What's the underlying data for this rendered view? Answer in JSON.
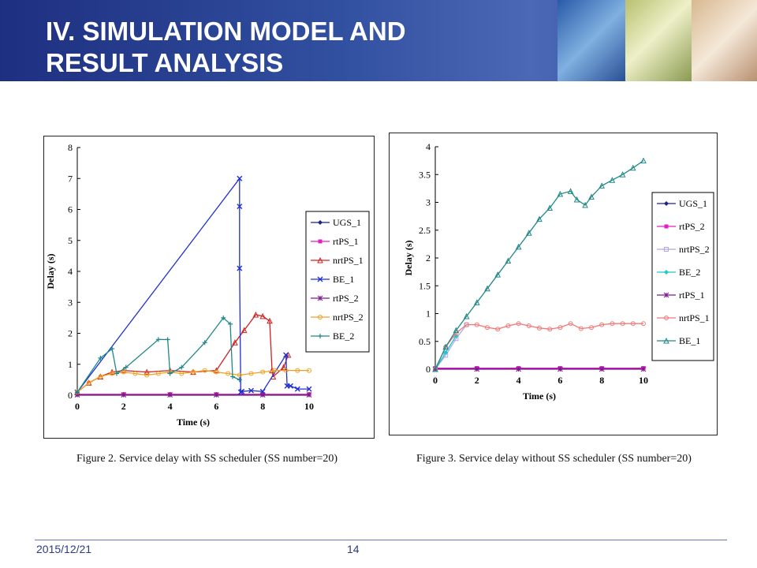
{
  "slide": {
    "title_line1": "IV. SIMULATION MODEL AND",
    "title_line2": "RESULT ANALYSIS",
    "date": "2015/12/21",
    "page_number": "14"
  },
  "chart_data": [
    {
      "type": "line",
      "caption": "Figure 2.    Service delay with SS scheduler (SS number=20)",
      "xlabel": "Time (s)",
      "ylabel": "Delay (s)",
      "xlim": [
        0,
        10
      ],
      "ylim": [
        0,
        8
      ],
      "xticks": [
        0,
        2,
        4,
        6,
        8,
        10
      ],
      "yticks": [
        0,
        1,
        2,
        3,
        4,
        5,
        6,
        7,
        8
      ],
      "legend_position": "right",
      "series": [
        {
          "name": "UGS_1",
          "color": "#1f1f8f",
          "marker": "diamond",
          "x": [
            0,
            2,
            4,
            6,
            8,
            10
          ],
          "y": [
            0.02,
            0.02,
            0.02,
            0.02,
            0.02,
            0.02
          ]
        },
        {
          "name": "rtPS_1",
          "color": "#e020c0",
          "marker": "square",
          "x": [
            0,
            2,
            4,
            6,
            8,
            10
          ],
          "y": [
            0.03,
            0.03,
            0.03,
            0.03,
            0.03,
            0.03
          ]
        },
        {
          "name": "nrtPS_1",
          "color": "#d02020",
          "marker": "triangle",
          "x": [
            0,
            0.5,
            1.0,
            1.5,
            2,
            3,
            4,
            5,
            6,
            6.8,
            7.2,
            7.7,
            8.0,
            8.3,
            8.4,
            8.45,
            8.9,
            9.1
          ],
          "y": [
            0.1,
            0.4,
            0.6,
            0.75,
            0.8,
            0.75,
            0.8,
            0.75,
            0.8,
            1.7,
            2.1,
            2.6,
            2.55,
            2.4,
            0.8,
            0.6,
            0.9,
            1.3
          ]
        },
        {
          "name": "BE_1",
          "color": "#2030d0",
          "marker": "x",
          "x": [
            0,
            7.0,
            7.0,
            7.0,
            7.05,
            7.1,
            7.5,
            8.0,
            9.0,
            9.05,
            9.2,
            9.5,
            10
          ],
          "y": [
            0.1,
            7.0,
            6.1,
            4.1,
            0.1,
            0.12,
            0.15,
            0.12,
            1.3,
            0.3,
            0.3,
            0.2,
            0.2
          ]
        },
        {
          "name": "rtPS_2",
          "color": "#7a1a8a",
          "marker": "asterisk",
          "x": [
            0,
            2,
            4,
            6,
            8,
            10
          ],
          "y": [
            0.01,
            0.01,
            0.01,
            0.01,
            0.01,
            0.01
          ]
        },
        {
          "name": "nrtPS_2",
          "color": "#f0a020",
          "marker": "circle",
          "x": [
            0,
            0.5,
            1.0,
            1.5,
            2,
            2.5,
            3,
            3.5,
            4,
            4.5,
            5,
            5.5,
            6,
            6.5,
            7,
            7.5,
            8,
            8.5,
            9,
            9.5,
            10
          ],
          "y": [
            0.1,
            0.4,
            0.6,
            0.7,
            0.75,
            0.7,
            0.65,
            0.7,
            0.75,
            0.7,
            0.75,
            0.8,
            0.75,
            0.7,
            0.65,
            0.7,
            0.75,
            0.8,
            0.8,
            0.8,
            0.8
          ]
        },
        {
          "name": "BE_2",
          "color": "#208888",
          "marker": "plus",
          "x": [
            0,
            1.0,
            1.5,
            1.7,
            2.1,
            3.5,
            3.9,
            4.0,
            4.5,
            5.5,
            6.3,
            6.6,
            6.7,
            7.0
          ],
          "y": [
            0.1,
            1.2,
            1.5,
            0.7,
            0.9,
            1.8,
            1.8,
            0.7,
            0.9,
            1.7,
            2.5,
            2.3,
            0.6,
            0.5
          ]
        }
      ]
    },
    {
      "type": "line",
      "caption": "Figure 3.    Service delay without SS scheduler (SS number=20)",
      "xlabel": "Time (s)",
      "ylabel": "Delay (s)",
      "xlim": [
        0,
        10
      ],
      "ylim": [
        0,
        4
      ],
      "xticks": [
        0,
        2,
        4,
        6,
        8,
        10
      ],
      "yticks": [
        0,
        0.5,
        1,
        1.5,
        2,
        2.5,
        3,
        3.5,
        4
      ],
      "legend_position": "right",
      "series": [
        {
          "name": "UGS_1",
          "color": "#1f1f8f",
          "marker": "diamond",
          "x": [
            0,
            2,
            4,
            6,
            8,
            10
          ],
          "y": [
            0.01,
            0.01,
            0.01,
            0.01,
            0.01,
            0.01
          ]
        },
        {
          "name": "rtPS_2",
          "color": "#e020c0",
          "marker": "square",
          "x": [
            0,
            2,
            4,
            6,
            8,
            10
          ],
          "y": [
            0.02,
            0.02,
            0.02,
            0.02,
            0.02,
            0.02
          ]
        },
        {
          "name": "nrtPS_2",
          "color": "#b0a8e8",
          "marker": "square-open",
          "x": [
            0,
            0.5,
            1.0,
            1.5
          ],
          "y": [
            0.0,
            0.25,
            0.55,
            0.8
          ]
        },
        {
          "name": "BE_2",
          "color": "#20c8c8",
          "marker": "diamond",
          "x": [
            0,
            0.5,
            1.0
          ],
          "y": [
            0.0,
            0.3,
            0.6
          ]
        },
        {
          "name": "rtPS_1",
          "color": "#7a1a8a",
          "marker": "asterisk",
          "x": [
            0,
            2,
            4,
            6,
            8,
            10
          ],
          "y": [
            0.0,
            0.0,
            0.0,
            0.0,
            0.0,
            0.0
          ]
        },
        {
          "name": "nrtPS_1",
          "color": "#f07878",
          "marker": "circle",
          "x": [
            0,
            0.5,
            1.0,
            1.5,
            2.0,
            2.5,
            3.0,
            3.5,
            4.0,
            4.5,
            5.0,
            5.5,
            6.0,
            6.5,
            7.0,
            7.5,
            8.0,
            8.5,
            9.0,
            9.5,
            10
          ],
          "y": [
            0.0,
            0.4,
            0.65,
            0.8,
            0.8,
            0.75,
            0.72,
            0.78,
            0.82,
            0.78,
            0.74,
            0.72,
            0.75,
            0.82,
            0.73,
            0.75,
            0.8,
            0.82,
            0.82,
            0.82,
            0.82
          ]
        },
        {
          "name": "BE_1",
          "color": "#208888",
          "marker": "triangle",
          "x": [
            0,
            0.5,
            1.0,
            1.5,
            2.0,
            2.5,
            3.0,
            3.5,
            4.0,
            4.5,
            5.0,
            5.5,
            6.0,
            6.5,
            6.8,
            7.2,
            7.5,
            8.0,
            8.5,
            9.0,
            9.5,
            10
          ],
          "y": [
            0.0,
            0.4,
            0.7,
            0.95,
            1.2,
            1.45,
            1.7,
            1.95,
            2.2,
            2.45,
            2.7,
            2.9,
            3.15,
            3.2,
            3.05,
            2.95,
            3.1,
            3.3,
            3.4,
            3.5,
            3.62,
            3.75
          ]
        }
      ]
    }
  ]
}
